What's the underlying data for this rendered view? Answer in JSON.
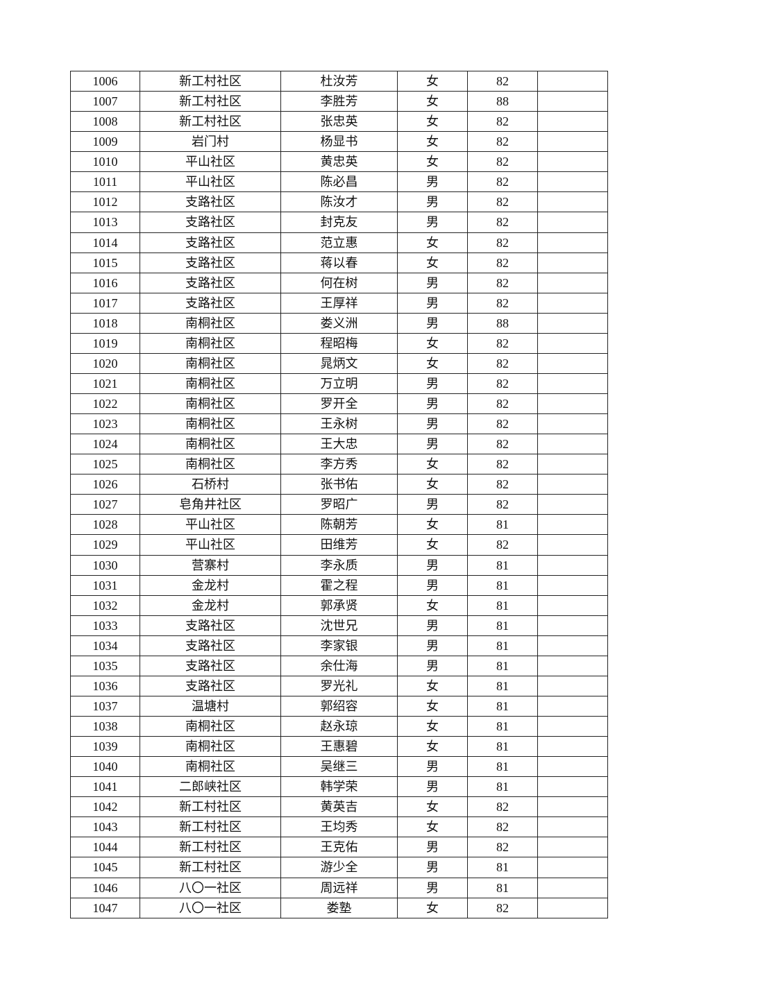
{
  "table": {
    "rows": [
      [
        "1006",
        "新工村社区",
        "杜汝芳",
        "女",
        "82",
        ""
      ],
      [
        "1007",
        "新工村社区",
        "李胜芳",
        "女",
        "88",
        ""
      ],
      [
        "1008",
        "新工村社区",
        "张忠英",
        "女",
        "82",
        ""
      ],
      [
        "1009",
        "岩门村",
        "杨显书",
        "女",
        "82",
        ""
      ],
      [
        "1010",
        "平山社区",
        "黄忠英",
        "女",
        "82",
        ""
      ],
      [
        "1011",
        "平山社区",
        "陈必昌",
        "男",
        "82",
        ""
      ],
      [
        "1012",
        "支路社区",
        "陈汝才",
        "男",
        "82",
        ""
      ],
      [
        "1013",
        "支路社区",
        "封克友",
        "男",
        "82",
        ""
      ],
      [
        "1014",
        "支路社区",
        "范立惠",
        "女",
        "82",
        ""
      ],
      [
        "1015",
        "支路社区",
        "蒋以春",
        "女",
        "82",
        ""
      ],
      [
        "1016",
        "支路社区",
        "何在树",
        "男",
        "82",
        ""
      ],
      [
        "1017",
        "支路社区",
        "王厚祥",
        "男",
        "82",
        ""
      ],
      [
        "1018",
        "南桐社区",
        "娄义洲",
        "男",
        "88",
        ""
      ],
      [
        "1019",
        "南桐社区",
        "程昭梅",
        "女",
        "82",
        ""
      ],
      [
        "1020",
        "南桐社区",
        "晁炳文",
        "女",
        "82",
        ""
      ],
      [
        "1021",
        "南桐社区",
        "万立明",
        "男",
        "82",
        ""
      ],
      [
        "1022",
        "南桐社区",
        "罗开全",
        "男",
        "82",
        ""
      ],
      [
        "1023",
        "南桐社区",
        "王永树",
        "男",
        "82",
        ""
      ],
      [
        "1024",
        "南桐社区",
        "王大忠",
        "男",
        "82",
        ""
      ],
      [
        "1025",
        "南桐社区",
        "李方秀",
        "女",
        "82",
        ""
      ],
      [
        "1026",
        "石桥村",
        "张书佑",
        "女",
        "82",
        ""
      ],
      [
        "1027",
        "皂角井社区",
        "罗昭广",
        "男",
        "82",
        ""
      ],
      [
        "1028",
        "平山社区",
        "陈朝芳",
        "女",
        "81",
        ""
      ],
      [
        "1029",
        "平山社区",
        "田维芳",
        "女",
        "82",
        ""
      ],
      [
        "1030",
        "营寨村",
        "李永质",
        "男",
        "81",
        ""
      ],
      [
        "1031",
        "金龙村",
        "霍之程",
        "男",
        "81",
        ""
      ],
      [
        "1032",
        "金龙村",
        "郭承贤",
        "女",
        "81",
        ""
      ],
      [
        "1033",
        "支路社区",
        "沈世兄",
        "男",
        "81",
        ""
      ],
      [
        "1034",
        "支路社区",
        "李家银",
        "男",
        "81",
        ""
      ],
      [
        "1035",
        "支路社区",
        "余仕海",
        "男",
        "81",
        ""
      ],
      [
        "1036",
        "支路社区",
        "罗光礼",
        "女",
        "81",
        ""
      ],
      [
        "1037",
        "温塘村",
        "郭绍容",
        "女",
        "81",
        ""
      ],
      [
        "1038",
        "南桐社区",
        "赵永琼",
        "女",
        "81",
        ""
      ],
      [
        "1039",
        "南桐社区",
        "王惠碧",
        "女",
        "81",
        ""
      ],
      [
        "1040",
        "南桐社区",
        "吴继三",
        "男",
        "81",
        ""
      ],
      [
        "1041",
        "二郎峡社区",
        "韩学荣",
        "男",
        "81",
        ""
      ],
      [
        "1042",
        "新工村社区",
        "黄英吉",
        "女",
        "82",
        ""
      ],
      [
        "1043",
        "新工村社区",
        "王均秀",
        "女",
        "82",
        ""
      ],
      [
        "1044",
        "新工村社区",
        "王克佑",
        "男",
        "82",
        ""
      ],
      [
        "1045",
        "新工村社区",
        "游少全",
        "男",
        "81",
        ""
      ],
      [
        "1046",
        "八〇一社区",
        "周远祥",
        "男",
        "81",
        ""
      ],
      [
        "1047",
        "八〇一社区",
        "娄塾",
        "女",
        "82",
        ""
      ]
    ]
  }
}
